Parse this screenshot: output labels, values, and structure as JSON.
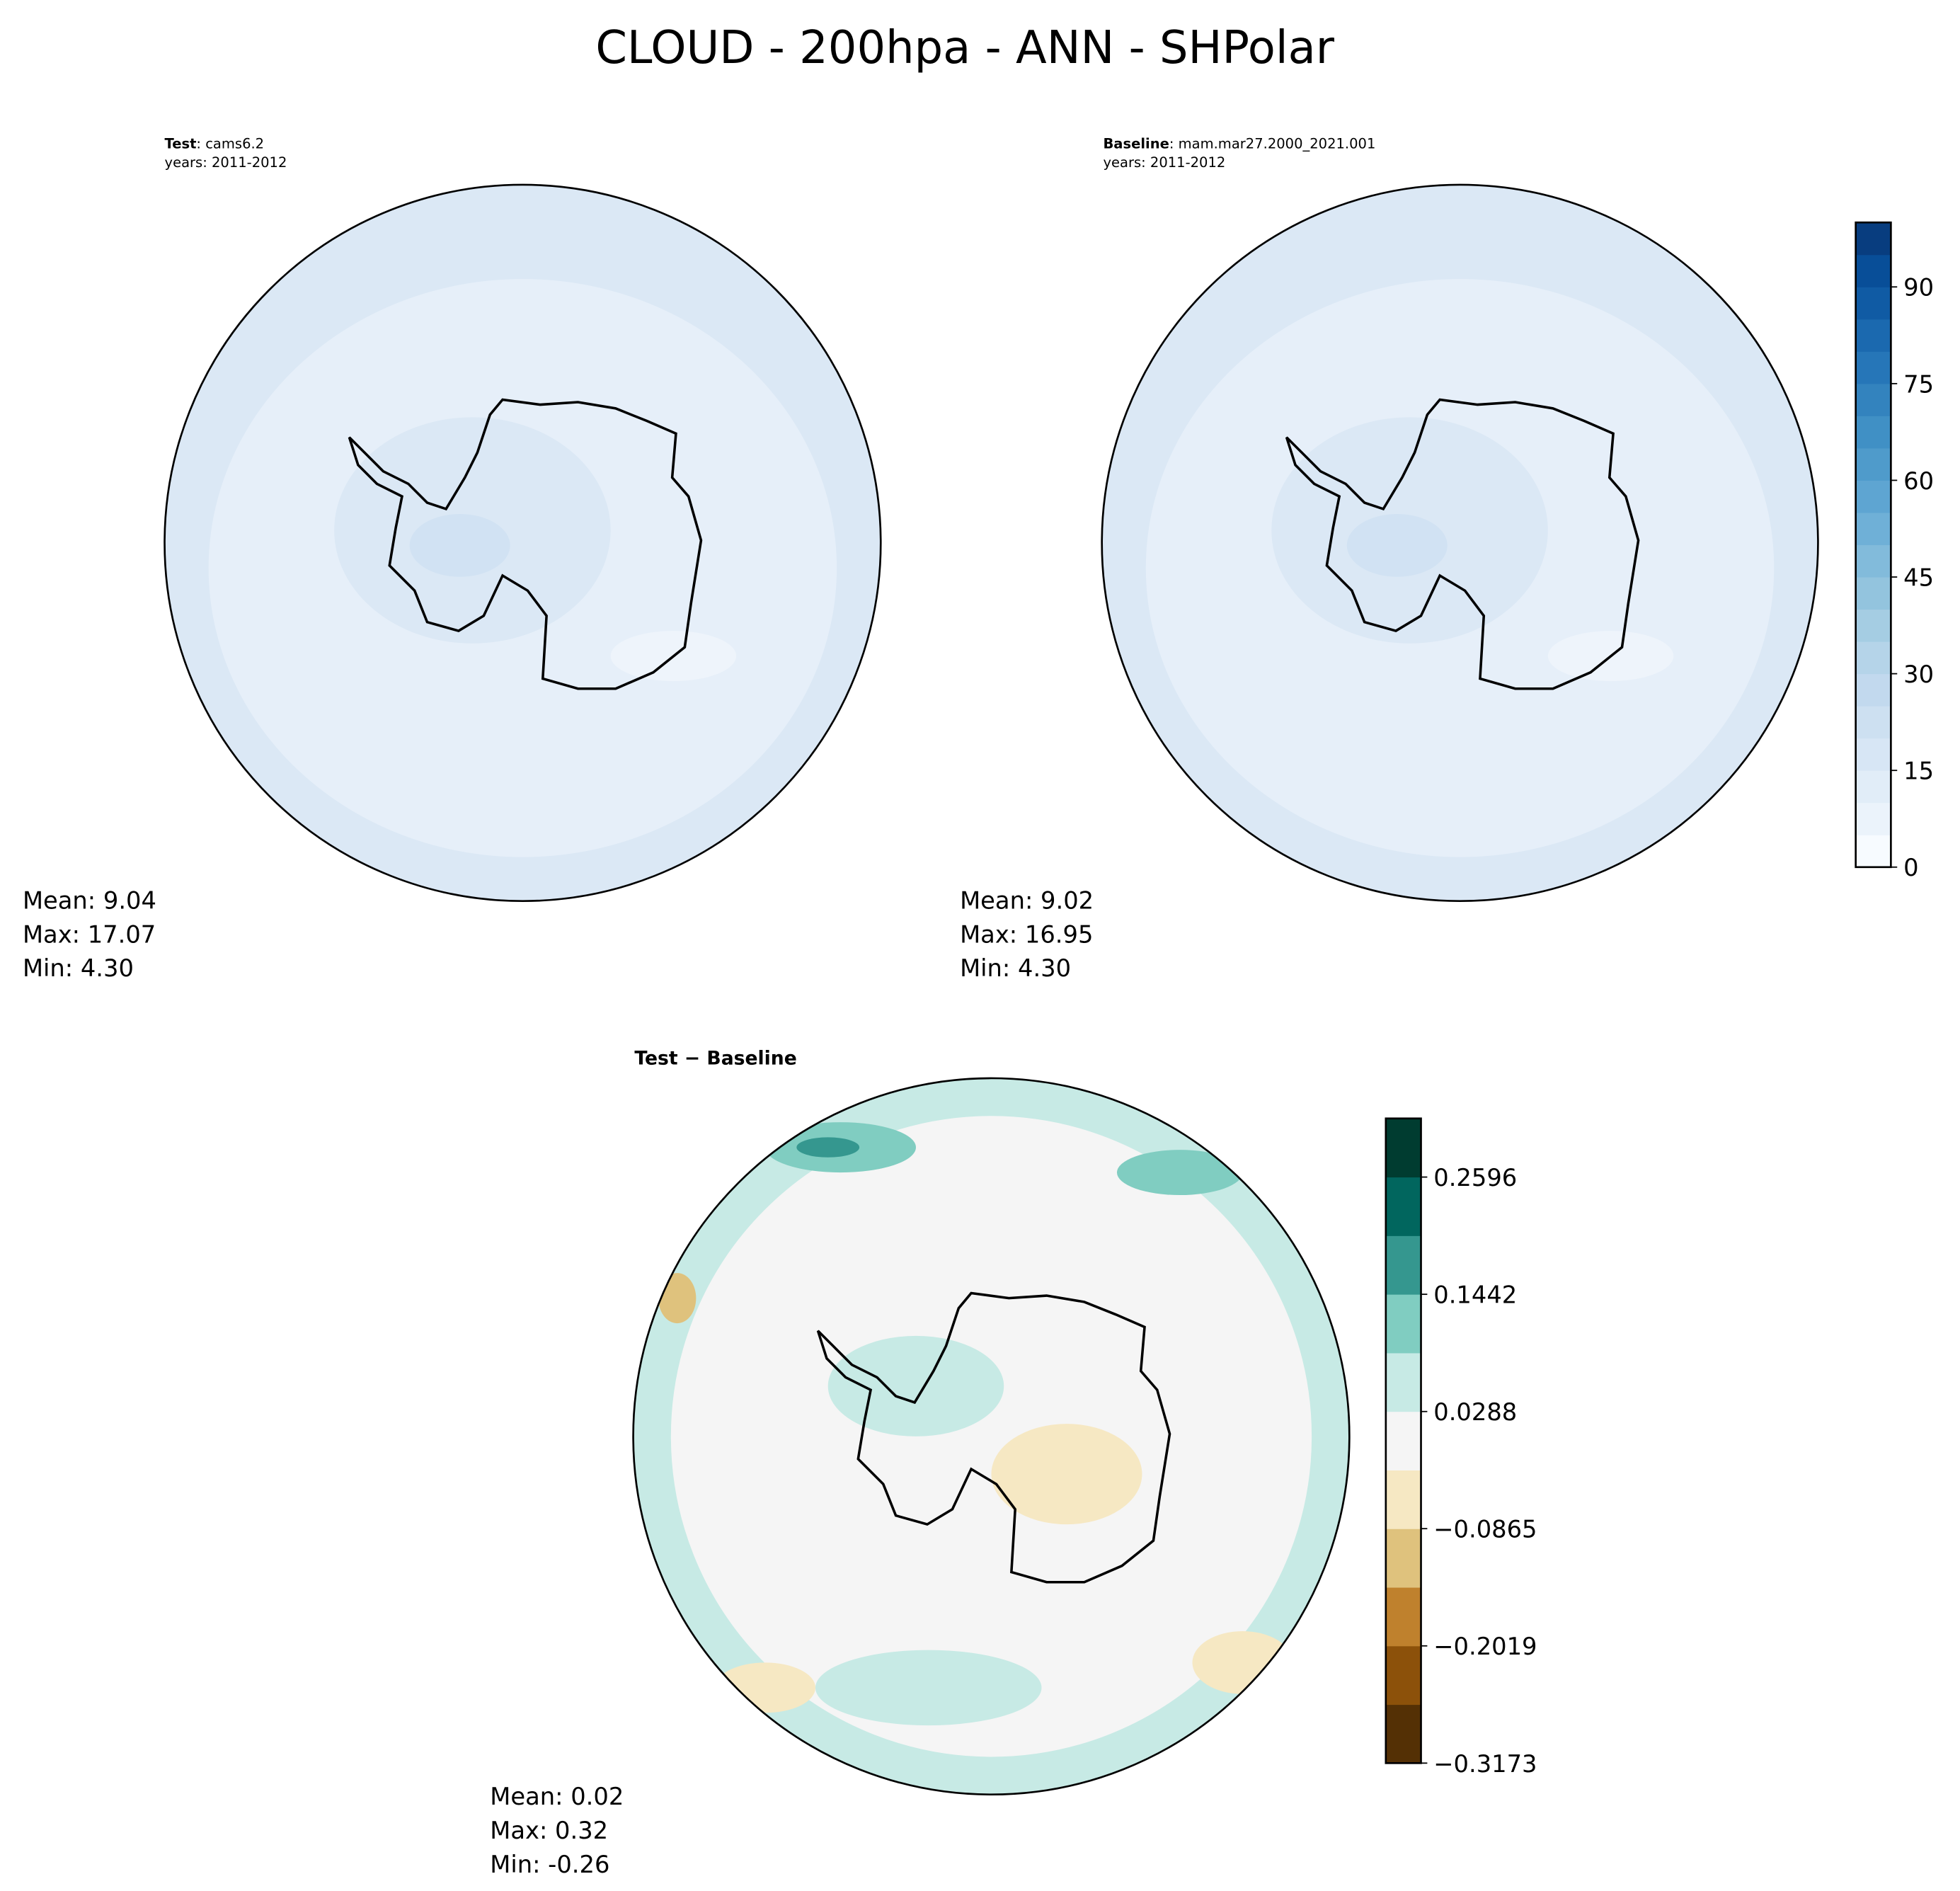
{
  "title": "CLOUD - 200hpa - ANN - SHPolar",
  "panels": [
    {
      "name_bold": "Test",
      "name": ": cams6.2",
      "years": "years: 2011-2012",
      "stats": [
        "Mean:  9.04",
        "Max: 17.07",
        "Min:  4.30"
      ]
    },
    {
      "name_bold": "Baseline",
      "name": ": mam.mar27.2000_2021.001",
      "years": "years: 2011-2012",
      "stats": [
        "Mean:  9.02",
        "Max: 16.95",
        "Min:  4.30"
      ]
    },
    {
      "name_bold": "Test − Baseline",
      "stats": [
        "Mean:  0.02",
        "Max:  0.32",
        "Min: -0.26"
      ]
    }
  ],
  "colorbars": [
    {
      "lim": [
        0,
        100
      ],
      "ticks": [
        0,
        15,
        30,
        45,
        60,
        75,
        90
      ],
      "colors": [
        "#f7fbff",
        "#ebf3fb",
        "#e1edf8",
        "#d7e6f5",
        "#cde0f1",
        "#c2d9ee",
        "#b5d4e9",
        "#a5cde3",
        "#93c4de",
        "#82bbdb",
        "#6fb0d7",
        "#5ea5d2",
        "#4f9bcb",
        "#4090c5",
        "#3383be",
        "#2676b8",
        "#1b69af",
        "#105ba4",
        "#084e98",
        "#083d7f"
      ]
    },
    {
      "lim": [
        -0.3173,
        0.3173
      ],
      "ticks": [
        {
          "value": -0.3173,
          "label": "−0.3173"
        },
        {
          "value": -0.2019,
          "label": "−0.2019"
        },
        {
          "value": -0.0865,
          "label": "−0.0865"
        },
        0.0288,
        0.1442,
        0.2596
      ],
      "colors": [
        "#543005",
        "#8c510a",
        "#bf812d",
        "#dfc27d",
        "#f6e8c3",
        "#f5f5f5",
        "#c7eae5",
        "#80cdc1",
        "#35978f",
        "#01665e",
        "#003c30"
      ]
    }
  ]
}
